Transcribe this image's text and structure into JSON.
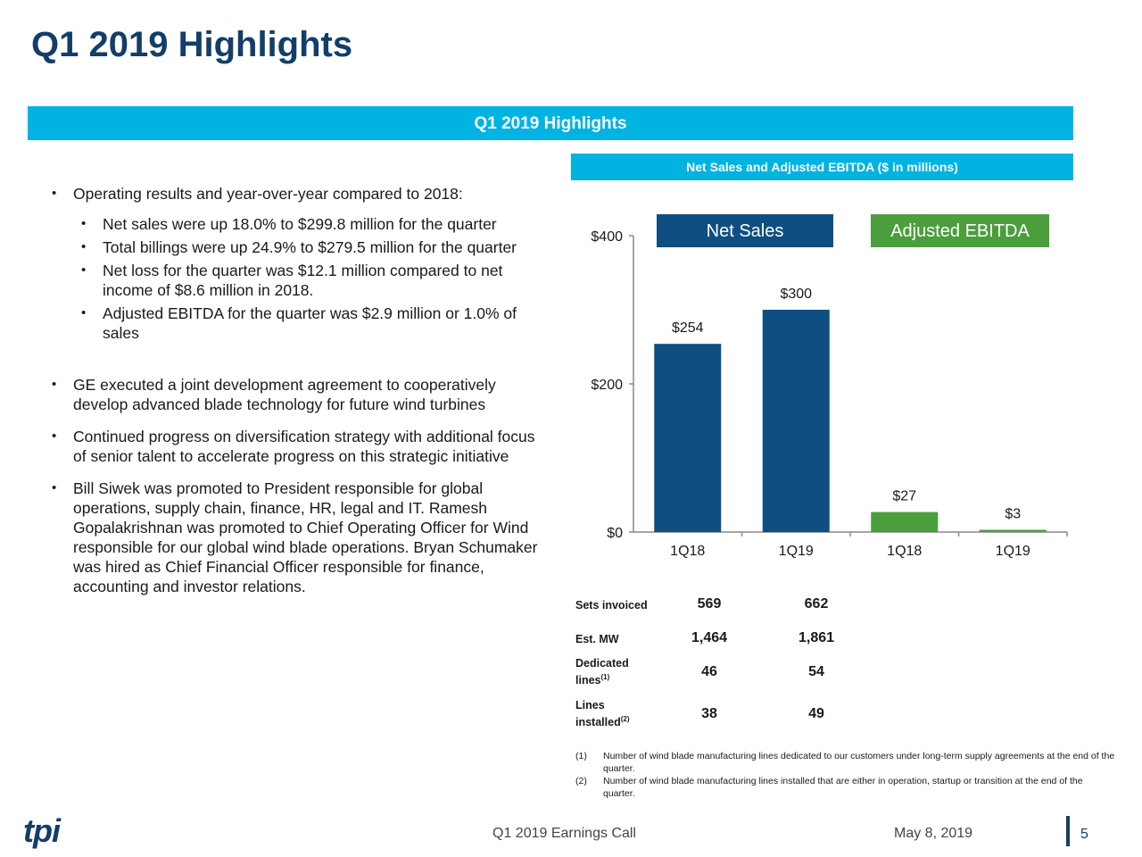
{
  "title": "Q1 2019 Highlights",
  "banner": "Q1 2019 Highlights",
  "chart_header": "Net Sales and Adjusted EBITDA ($ in millions)",
  "bullets": {
    "b1": "Operating results and year-over-year compared to 2018:",
    "s1": "Net sales were up 18.0% to $299.8 million for the quarter",
    "s2": "Total billings were up 24.9% to $279.5 million for the quarter",
    "s3": "Net loss for the quarter was $12.1 million compared to net income of $8.6 million in 2018.",
    "s4": "Adjusted EBITDA for the quarter was $2.9 million or 1.0% of sales",
    "b2": "GE executed a joint development agreement to cooperatively develop advanced blade technology for future wind turbines",
    "b3": "Continued progress on diversification strategy with additional focus of senior talent to accelerate progress on this strategic initiative",
    "b4": "Bill Siwek was promoted to President responsible for global operations, supply chain, finance, HR, legal and IT. Ramesh Gopalakrishnan was promoted to Chief Operating Officer for Wind responsible for our global wind blade operations. Bryan Schumaker was hired as Chief Financial Officer responsible for finance, accounting and investor relations."
  },
  "chart_data": {
    "type": "bar",
    "categories": [
      "1Q18",
      "1Q19",
      "1Q18",
      "1Q19"
    ],
    "series": [
      {
        "name": "Net Sales",
        "values": [
          254,
          300,
          null,
          null
        ],
        "labels": [
          "$254",
          "$300",
          "",
          ""
        ],
        "color": "#0f4e81"
      },
      {
        "name": "Adjusted EBITDA",
        "values": [
          null,
          null,
          27,
          3
        ],
        "labels": [
          "",
          "",
          "$27",
          "$3"
        ],
        "color": "#4a9e3c"
      }
    ],
    "yticks": [
      {
        "value": 400,
        "label": "$400"
      },
      {
        "value": 200,
        "label": "$200"
      },
      {
        "value": 0,
        "label": "$0"
      }
    ],
    "ylim": [
      0,
      400
    ],
    "legend": "top",
    "grid": false
  },
  "legend": {
    "net_sales": "Net Sales",
    "ebitda": "Adjusted EBITDA"
  },
  "metrics": [
    {
      "label": "Sets invoiced",
      "sup": "",
      "q18": "569",
      "q19": "662"
    },
    {
      "label": "Est. MW",
      "sup": "",
      "q18": "1,464",
      "q19": "1,861"
    },
    {
      "label": "Dedicated lines",
      "sup": "(1)",
      "q18": "46",
      "q19": "54"
    },
    {
      "label": "Lines installed",
      "sup": "(2)",
      "q18": "38",
      "q19": "49"
    }
  ],
  "footnotes": [
    {
      "num": "(1)",
      "text": "Number of wind blade manufacturing lines dedicated to our customers under long-term supply agreements at the end of the quarter."
    },
    {
      "num": "(2)",
      "text": "Number of wind blade manufacturing lines installed that are either in operation, startup or transition at the end of the quarter."
    }
  ],
  "footer": {
    "logo": "tpi",
    "center": "Q1 2019 Earnings Call",
    "date": "May 8, 2019",
    "page": "5"
  },
  "colors": {
    "navy": "#123e69",
    "cyan": "#00b3e2",
    "bar_blue": "#0f4e81",
    "bar_green": "#4a9e3c"
  }
}
